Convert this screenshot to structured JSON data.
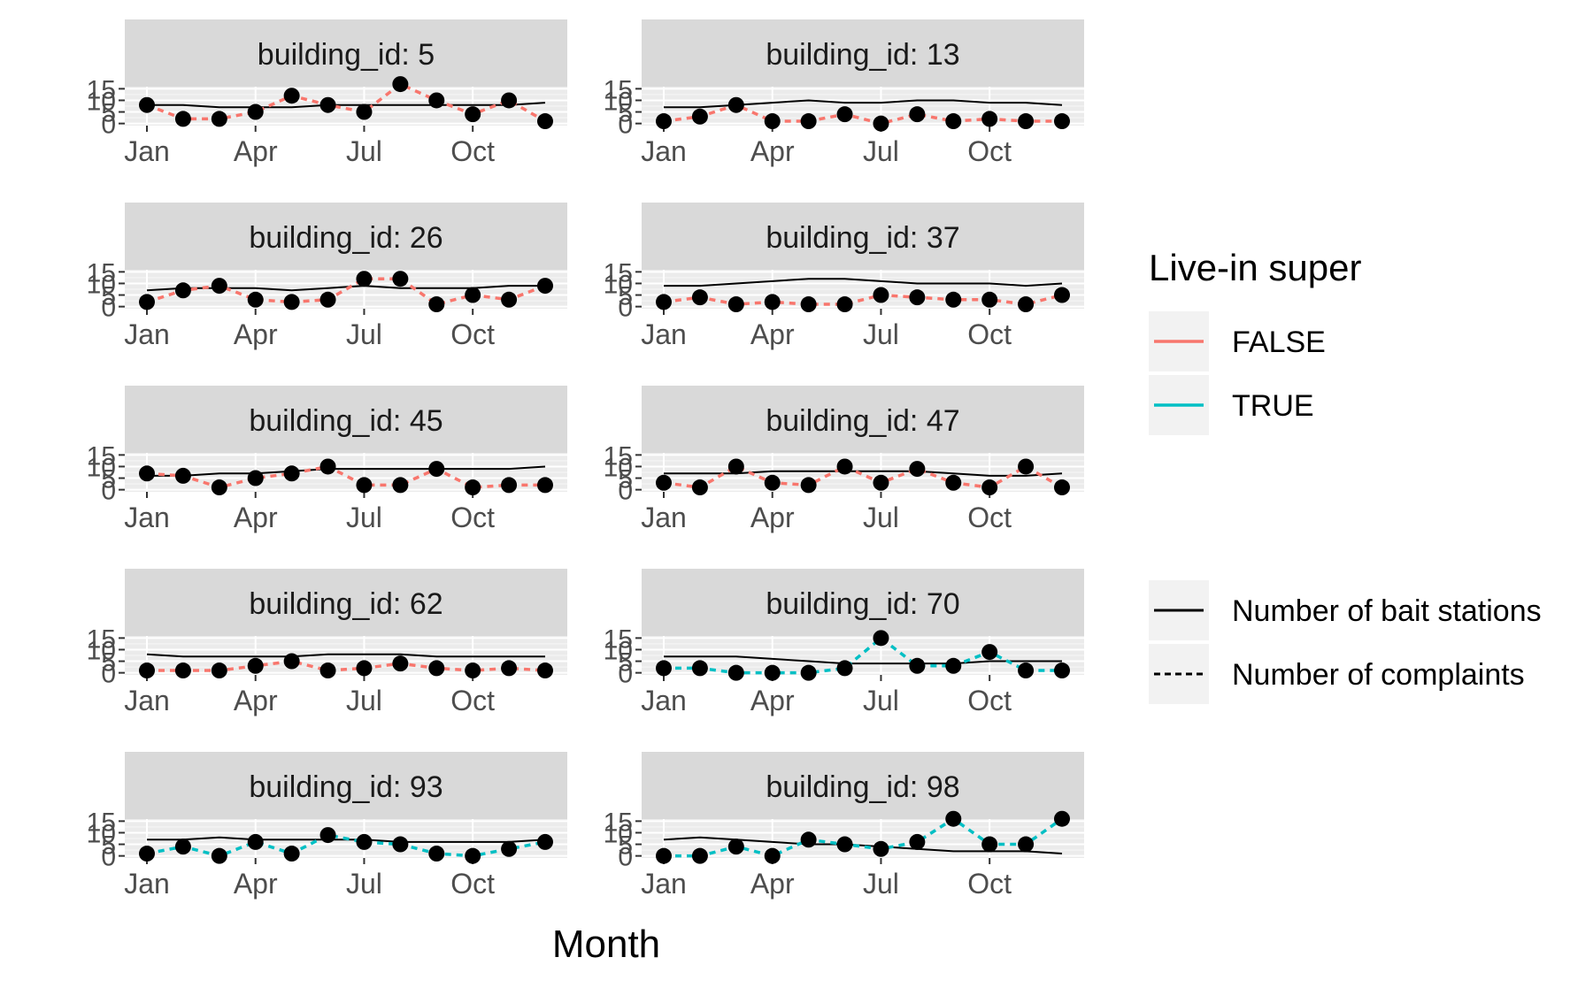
{
  "chart_data": {
    "type": "line",
    "xlabel": "Month",
    "ylabel": "",
    "x_ticks": [
      "Jan",
      "Apr",
      "Jul",
      "Oct"
    ],
    "y_ticks": [
      0,
      5,
      10,
      15
    ],
    "ylim": [
      0,
      15
    ],
    "x_months": [
      "Jan",
      "Feb",
      "Mar",
      "Apr",
      "May",
      "Jun",
      "Jul",
      "Aug",
      "Sep",
      "Oct",
      "Nov",
      "Dec"
    ],
    "legend": {
      "color_title": "Live-in super",
      "color_entries": [
        {
          "label": "FALSE",
          "color": "#F8766D"
        },
        {
          "label": "TRUE",
          "color": "#00BFC4"
        }
      ],
      "linetype_entries": [
        {
          "label": "Number of bait stations",
          "linetype": "solid"
        },
        {
          "label": "Number of complaints",
          "linetype": "dashed"
        }
      ]
    },
    "panels": [
      {
        "title": "building_id: 5",
        "live_in_super": false,
        "bait_stations": [
          8,
          8,
          7,
          7,
          7,
          8,
          8,
          8,
          8,
          8,
          8,
          9
        ],
        "complaints": [
          8,
          2,
          2,
          5,
          12,
          8,
          5,
          17,
          10,
          4,
          10,
          1
        ]
      },
      {
        "title": "building_id: 13",
        "live_in_super": false,
        "bait_stations": [
          7,
          7,
          8,
          9,
          10,
          9,
          9,
          10,
          10,
          9,
          9,
          8
        ],
        "complaints": [
          1,
          3,
          8,
          1,
          1,
          4,
          0,
          4,
          1,
          2,
          1,
          1
        ]
      },
      {
        "title": "building_id: 26",
        "live_in_super": false,
        "bait_stations": [
          7,
          8,
          8,
          8,
          7,
          8,
          9,
          8,
          8,
          8,
          9,
          9
        ],
        "complaints": [
          2,
          7,
          9,
          3,
          2,
          3,
          12,
          12,
          1,
          5,
          3,
          9
        ]
      },
      {
        "title": "building_id: 37",
        "live_in_super": false,
        "bait_stations": [
          9,
          9,
          10,
          11,
          12,
          12,
          11,
          10,
          10,
          10,
          9,
          10
        ],
        "complaints": [
          2,
          4,
          1,
          2,
          1,
          1,
          5,
          4,
          3,
          3,
          1,
          5
        ]
      },
      {
        "title": "building_id: 45",
        "live_in_super": false,
        "bait_stations": [
          6,
          6,
          7,
          7,
          8,
          9,
          9,
          9,
          9,
          9,
          9,
          10
        ],
        "complaints": [
          7,
          6,
          1,
          5,
          7,
          10,
          2,
          2,
          9,
          1,
          2,
          2
        ]
      },
      {
        "title": "building_id: 47",
        "live_in_super": false,
        "bait_stations": [
          7,
          7,
          7,
          8,
          8,
          8,
          8,
          8,
          7,
          6,
          6,
          7
        ],
        "complaints": [
          3,
          1,
          10,
          3,
          2,
          10,
          3,
          9,
          3,
          1,
          10,
          1
        ]
      },
      {
        "title": "building_id: 62",
        "live_in_super": false,
        "bait_stations": [
          8,
          7,
          7,
          7,
          7,
          8,
          8,
          8,
          7,
          7,
          7,
          7
        ],
        "complaints": [
          1,
          1,
          1,
          3,
          5,
          1,
          2,
          4,
          2,
          1,
          2,
          1
        ]
      },
      {
        "title": "building_id: 70",
        "live_in_super": true,
        "bait_stations": [
          7,
          7,
          7,
          6,
          5,
          4,
          4,
          4,
          4,
          5,
          5,
          5
        ],
        "complaints": [
          2,
          2,
          0,
          0,
          0,
          2,
          15,
          3,
          3,
          9,
          1,
          1
        ]
      },
      {
        "title": "building_id: 93",
        "live_in_super": true,
        "bait_stations": [
          7,
          7,
          8,
          7,
          7,
          7,
          7,
          6,
          6,
          6,
          6,
          7
        ],
        "complaints": [
          1,
          4,
          0,
          6,
          1,
          9,
          6,
          5,
          1,
          0,
          3,
          6
        ]
      },
      {
        "title": "building_id: 98",
        "live_in_super": true,
        "bait_stations": [
          7,
          8,
          7,
          6,
          5,
          5,
          4,
          3,
          2,
          2,
          2,
          1
        ],
        "complaints": [
          0,
          0,
          4,
          0,
          7,
          5,
          3,
          6,
          16,
          5,
          5,
          16
        ]
      }
    ]
  }
}
